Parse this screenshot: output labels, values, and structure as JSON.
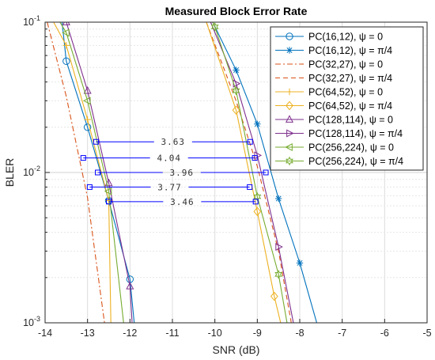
{
  "chart_data": {
    "type": "line",
    "title": "Measured Block Error Rate",
    "xlabel": "SNR (dB)",
    "ylabel": "BLER",
    "xlim": [
      -14,
      -5
    ],
    "ylim": [
      0.001,
      0.1
    ],
    "yscale": "log",
    "grid": true,
    "minor_grid": true,
    "legend_position": "top-right",
    "x_ticks": [
      -14,
      -13,
      -12,
      -11,
      -10,
      -9,
      -8,
      -7,
      -6,
      -5
    ],
    "x_tick_labels": [
      "-14",
      "-13",
      "-12",
      "-11",
      "-10",
      "-9",
      "-8",
      "-7",
      "-6",
      "-5"
    ],
    "y_ticks": [
      0.001,
      0.01,
      0.1
    ],
    "series": [
      {
        "name": "PC(16,12), ψ = 0",
        "color": "#0072BD",
        "dash": "solid",
        "marker": "circle",
        "x": [
          -13.6,
          -13.5,
          -13,
          -12.5,
          -12,
          -11.9
        ],
        "y": [
          0.1,
          0.055,
          0.02,
          0.0065,
          0.00195,
          0.001
        ]
      },
      {
        "name": "PC(16,12), ψ = π/4",
        "color": "#0072BD",
        "dash": "solid",
        "marker": "asterisk",
        "x": [
          -10.05,
          -9.5,
          -9,
          -8.5,
          -8,
          -7.6
        ],
        "y": [
          0.1,
          0.048,
          0.021,
          0.0067,
          0.0025,
          0.001
        ]
      },
      {
        "name": "PC(32,27), ψ = 0",
        "color": "#D95319",
        "dash": "dashdot",
        "marker": "none",
        "x": [
          -13.95,
          -13.5,
          -13,
          -12.6
        ],
        "y": [
          0.1,
          0.032,
          0.0068,
          0.001
        ]
      },
      {
        "name": "PC(32,27), ψ = π/4",
        "color": "#D95319",
        "dash": "dashed",
        "marker": "none",
        "x": [
          -10.2,
          -9.5,
          -9,
          -8.5,
          -8.2
        ],
        "y": [
          0.1,
          0.03,
          0.011,
          0.003,
          0.001
        ]
      },
      {
        "name": "PC(64,52), ψ = 0",
        "color": "#EDB120",
        "dash": "solid",
        "marker": "plus",
        "x": [
          -13.8,
          -13.5,
          -13,
          -12.5,
          -12.45
        ],
        "y": [
          0.1,
          0.07,
          0.0225,
          0.0065,
          0.001
        ]
      },
      {
        "name": "PC(64,52), ψ = π/4",
        "color": "#EDB120",
        "dash": "solid",
        "marker": "diamond",
        "x": [
          -10.2,
          -9.5,
          -9,
          -8.6,
          -8.45
        ],
        "y": [
          0.1,
          0.026,
          0.0055,
          0.0015,
          0.001
        ]
      },
      {
        "name": "PC(128,114), ψ = 0",
        "color": "#7E2F8E",
        "dash": "solid",
        "marker": "triangle-up",
        "x": [
          -13.65,
          -13.5,
          -13,
          -12.5,
          -12,
          -11.95
        ],
        "y": [
          0.1,
          0.1,
          0.035,
          0.0085,
          0.00175,
          0.001
        ]
      },
      {
        "name": "PC(128,114), ψ = π/4",
        "color": "#7E2F8E",
        "dash": "solid",
        "marker": "triangle-right",
        "x": [
          -10.1,
          -9.5,
          -9,
          -8.5,
          -8.15
        ],
        "y": [
          0.1,
          0.039,
          0.013,
          0.0032,
          0.001
        ]
      },
      {
        "name": "PC(256,224), ψ = 0",
        "color": "#77AC30",
        "dash": "solid",
        "marker": "triangle-left",
        "x": [
          -13.65,
          -13.5,
          -13,
          -12.5,
          -12.15
        ],
        "y": [
          0.1,
          0.085,
          0.03,
          0.0075,
          0.001
        ]
      },
      {
        "name": "PC(256,224), ψ = π/4",
        "color": "#77AC30",
        "dash": "solid",
        "marker": "hexagram",
        "x": [
          -10.05,
          -10,
          -9.5,
          -9,
          -8.5,
          -8.3
        ],
        "y": [
          0.1,
          0.093,
          0.035,
          0.0069,
          0.0021,
          0.001
        ]
      }
    ],
    "annotations": [
      {
        "text": "3.63",
        "x_start": -12.8,
        "x_end": -9.17,
        "y": 0.016
      },
      {
        "text": "4.04",
        "x_start": -13.1,
        "x_end": -9.06,
        "y": 0.0125
      },
      {
        "text": "3.96",
        "x_start": -12.76,
        "x_end": -8.8,
        "y": 0.01
      },
      {
        "text": "3.77",
        "x_start": -12.95,
        "x_end": -9.18,
        "y": 0.008
      },
      {
        "text": "3.46",
        "x_start": -12.5,
        "x_end": -9.04,
        "y": 0.0064
      }
    ],
    "annotation_color": "#0000FF"
  }
}
